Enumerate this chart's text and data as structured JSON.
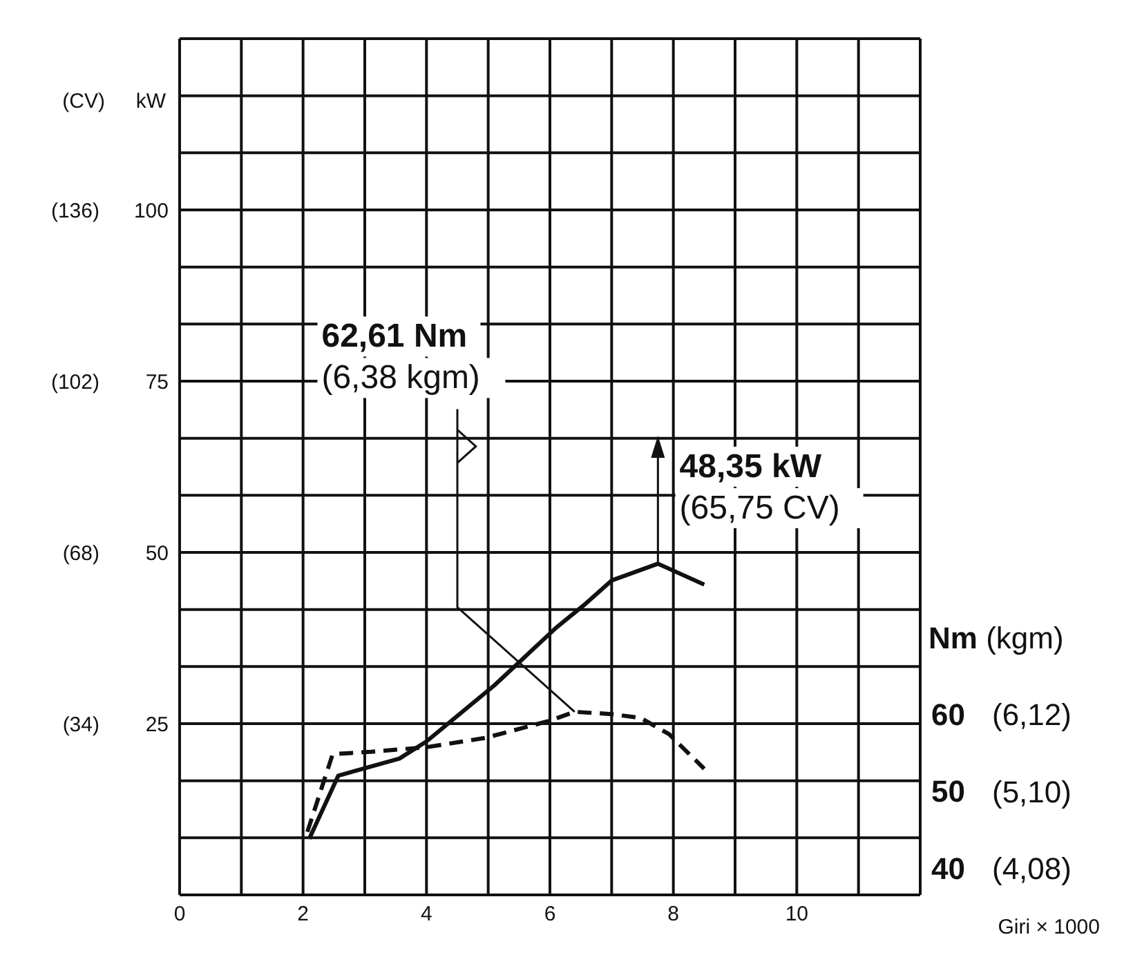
{
  "chart_data": {
    "type": "line",
    "xlabel": "Giri × 1000",
    "ylabel": "kW",
    "y2label": "(CV)",
    "y3label": "Nm (kgm)",
    "series": [
      {
        "color": "#111111",
        "line_style": "solid",
        "x": [
          2.1,
          2.57,
          3.56,
          4.0,
          5.1,
          6.1,
          6.55,
          7.0,
          7.75,
          8.5
        ],
        "values": [
          8.2,
          17.4,
          19.9,
          22.4,
          30.6,
          39,
          42.3,
          45.9,
          48.35,
          45.3
        ]
      },
      {
        "color": "#111111",
        "line_style": "dashed",
        "axis": "y3",
        "x": [
          2.07,
          2.48,
          3.1,
          4.0,
          4.95,
          5.98,
          6.4,
          7.0,
          7.47,
          7.93,
          8.5
        ],
        "values": [
          44.7,
          54.8,
          55.1,
          55.7,
          56.9,
          59.1,
          60.3,
          60.0,
          59.5,
          57.4,
          52.9
        ]
      }
    ],
    "xlim": [
      0,
      12
    ],
    "xticks": [
      0,
      {
        "value": 1,
        "label": null
      },
      2,
      {
        "value": 3,
        "label": null
      },
      4,
      {
        "value": 5,
        "label": null
      },
      6,
      {
        "value": 7,
        "label": null
      },
      8,
      {
        "value": 9,
        "label": null
      },
      10,
      {
        "value": 11,
        "label": null
      },
      {
        "value": 12,
        "label": null
      }
    ],
    "ylim": [
      0,
      125
    ],
    "yticks": [
      {
        "value": 0,
        "label": null
      },
      {
        "value": 8.333,
        "label": null
      },
      {
        "value": 16.667,
        "label": null
      },
      25,
      {
        "value": 33.333,
        "label": null
      },
      {
        "value": 41.667,
        "label": null
      },
      50,
      {
        "value": 58.333,
        "label": null
      },
      {
        "value": 66.667,
        "label": null
      },
      75,
      {
        "value": 83.333,
        "label": null
      },
      {
        "value": 91.667,
        "label": null
      },
      100,
      {
        "value": 108.333,
        "label": null
      },
      {
        "value": 116.667,
        "label": null
      },
      {
        "value": 125,
        "label": null
      }
    ],
    "y2lim": [
      0,
      170
    ],
    "y2ticks": [
      {
        "value": 34,
        "label": "(34)"
      },
      {
        "value": 68,
        "label": "(68)"
      },
      {
        "value": 102,
        "label": "(102)"
      },
      {
        "value": 136,
        "label": "(136)"
      }
    ],
    "y3lim": [
      36.5,
      147.8
    ],
    "y3ticks": [
      40,
      50,
      60
    ],
    "annotations": [
      "62,61 Nm",
      "(6,38 kgm)",
      {
        "text": "48,35 kW",
        "x": 7.75,
        "y": 48.35
      },
      "(65,75 CV)",
      "(4,08)",
      "(5,10)",
      "(6,12)"
    ],
    "grid": true,
    "legend": false,
    "marker": "none"
  }
}
